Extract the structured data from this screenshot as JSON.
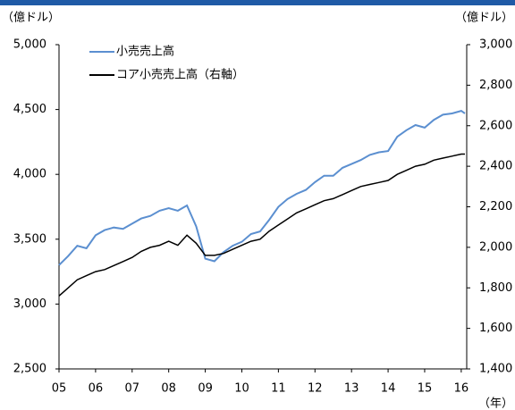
{
  "chart_data": {
    "type": "line",
    "y_label": "（億ドル）",
    "y2_label": "（億ドル）",
    "x_label": "（年）",
    "x": [
      5,
      5.25,
      5.5,
      5.75,
      6,
      6.25,
      6.5,
      6.75,
      7,
      7.25,
      7.5,
      7.75,
      8,
      8.25,
      8.5,
      8.75,
      9,
      9.25,
      9.5,
      9.75,
      10,
      10.25,
      10.5,
      10.75,
      11,
      11.25,
      11.5,
      11.75,
      12,
      12.25,
      12.5,
      12.75,
      13,
      13.25,
      13.5,
      13.75,
      14,
      14.25,
      14.5,
      14.75,
      15,
      15.25,
      15.5,
      15.75,
      16,
      16.1
    ],
    "series": [
      {
        "name": "小売売上高",
        "color": "#5b8fd0",
        "axis": "y",
        "values": [
          3300,
          3370,
          3450,
          3430,
          3530,
          3570,
          3590,
          3580,
          3620,
          3660,
          3680,
          3720,
          3740,
          3720,
          3760,
          3600,
          3350,
          3330,
          3400,
          3450,
          3480,
          3540,
          3560,
          3650,
          3750,
          3810,
          3850,
          3880,
          3940,
          3990,
          3990,
          4050,
          4080,
          4110,
          4150,
          4170,
          4180,
          4290,
          4340,
          4380,
          4360,
          4420,
          4460,
          4470,
          4490,
          4470
        ]
      },
      {
        "name": "コア小売売上高（右軸）",
        "color": "#000000",
        "axis": "y2",
        "values": [
          1760,
          1800,
          1840,
          1860,
          1880,
          1890,
          1910,
          1930,
          1950,
          1980,
          2000,
          2010,
          2030,
          2010,
          2060,
          2020,
          1960,
          1960,
          1970,
          1990,
          2010,
          2030,
          2040,
          2080,
          2110,
          2140,
          2170,
          2190,
          2210,
          2230,
          2240,
          2260,
          2280,
          2300,
          2310,
          2320,
          2330,
          2360,
          2380,
          2400,
          2410,
          2430,
          2440,
          2450,
          2460,
          2460
        ]
      }
    ],
    "xlim": [
      5,
      16.15
    ],
    "xticks": [
      {
        "value": 5,
        "label": "05"
      },
      {
        "value": 6,
        "label": "06"
      },
      {
        "value": 7,
        "label": "07"
      },
      {
        "value": 8,
        "label": "08"
      },
      {
        "value": 9,
        "label": "09"
      },
      10,
      11,
      12,
      13,
      14,
      15,
      16
    ],
    "ylim": [
      2500,
      5000
    ],
    "yticks": [
      {
        "value": 2500,
        "label": "2,500"
      },
      {
        "value": 3000,
        "label": "3,000"
      },
      {
        "value": 3500,
        "label": "3,500"
      },
      {
        "value": 4000,
        "label": "4,000"
      },
      {
        "value": 4500,
        "label": "4,500"
      },
      {
        "value": 5000,
        "label": "5,000"
      }
    ],
    "y2lim": [
      1400,
      3000
    ],
    "y2ticks": [
      {
        "value": 1400,
        "label": "1,400"
      },
      {
        "value": 1600,
        "label": "1,600"
      },
      {
        "value": 1800,
        "label": "1,800"
      },
      {
        "value": 2000,
        "label": "2,000"
      },
      {
        "value": 2200,
        "label": "2,200"
      },
      {
        "value": 2400,
        "label": "2,400"
      },
      {
        "value": 2600,
        "label": "2,600"
      },
      {
        "value": 2800,
        "label": "2,800"
      },
      {
        "value": 3000,
        "label": "3,000"
      }
    ],
    "legend": "upper left",
    "grid": false
  }
}
